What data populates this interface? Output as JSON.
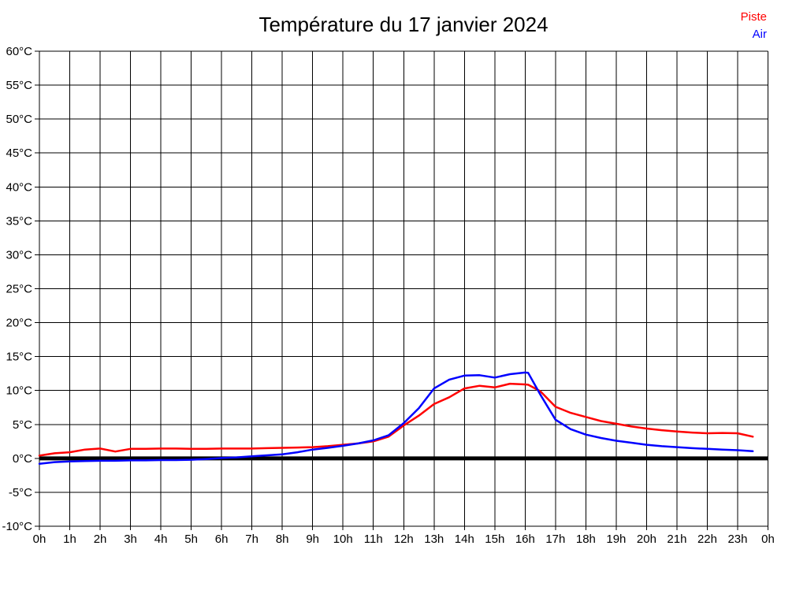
{
  "chart_data": {
    "type": "line",
    "title": "Température du 17 janvier 2024",
    "xlabel": "",
    "ylabel": "",
    "xlim": [
      0,
      24
    ],
    "ylim": [
      -10,
      60
    ],
    "x_step": 1,
    "y_step": 5,
    "grid": true,
    "grid_color": "#000000",
    "axis_color": "#000000",
    "zero_line": {
      "value": 0,
      "color": "#000000",
      "width": 5
    },
    "legend_position": "top-right",
    "x_ticks": [
      "0h",
      "1h",
      "2h",
      "3h",
      "4h",
      "5h",
      "6h",
      "7h",
      "8h",
      "9h",
      "10h",
      "11h",
      "12h",
      "13h",
      "14h",
      "15h",
      "16h",
      "17h",
      "18h",
      "19h",
      "20h",
      "21h",
      "22h",
      "23h",
      "0h"
    ],
    "y_ticks": [
      "-10°C",
      "-5°C",
      "0°C",
      "5°C",
      "10°C",
      "15°C",
      "20°C",
      "25°C",
      "30°C",
      "35°C",
      "40°C",
      "45°C",
      "50°C",
      "55°C",
      "60°C"
    ],
    "x": [
      0,
      0.5,
      1,
      1.5,
      2,
      2.5,
      3,
      3.5,
      4,
      4.5,
      5,
      5.5,
      6,
      6.5,
      7,
      7.5,
      8,
      8.5,
      9,
      9.5,
      10,
      10.5,
      11,
      11.5,
      12,
      12.5,
      13,
      13.5,
      14,
      14.5,
      15,
      15.5,
      16,
      16.1,
      16.5,
      17,
      17.5,
      18,
      18.5,
      19,
      19.5,
      20,
      20.5,
      21,
      21.5,
      22,
      22.5,
      23,
      23.5
    ],
    "series": [
      {
        "name": "Piste",
        "color": "#ff0000",
        "values": [
          0.4,
          0.75,
          0.9,
          1.3,
          1.45,
          1.0,
          1.4,
          1.4,
          1.45,
          1.45,
          1.4,
          1.4,
          1.45,
          1.45,
          1.45,
          1.5,
          1.55,
          1.6,
          1.65,
          1.8,
          2.0,
          2.2,
          2.5,
          3.2,
          4.85,
          6.3,
          8.0,
          9.0,
          10.3,
          10.7,
          10.45,
          11.0,
          10.9,
          10.85,
          9.9,
          7.6,
          6.7,
          6.1,
          5.5,
          5.1,
          4.7,
          4.4,
          4.15,
          3.95,
          3.8,
          3.7,
          3.75,
          3.7,
          3.2
        ]
      },
      {
        "name": "Air",
        "color": "#0000ff",
        "values": [
          -0.8,
          -0.55,
          -0.45,
          -0.4,
          -0.35,
          -0.35,
          -0.3,
          -0.3,
          -0.25,
          -0.25,
          -0.2,
          -0.1,
          0.05,
          0.15,
          0.3,
          0.45,
          0.6,
          0.9,
          1.3,
          1.55,
          1.85,
          2.2,
          2.65,
          3.4,
          5.2,
          7.4,
          10.3,
          11.6,
          12.2,
          12.25,
          11.9,
          12.4,
          12.65,
          12.6,
          9.4,
          5.7,
          4.3,
          3.5,
          3.0,
          2.6,
          2.3,
          2.0,
          1.8,
          1.65,
          1.5,
          1.4,
          1.3,
          1.2,
          1.05
        ]
      }
    ]
  }
}
